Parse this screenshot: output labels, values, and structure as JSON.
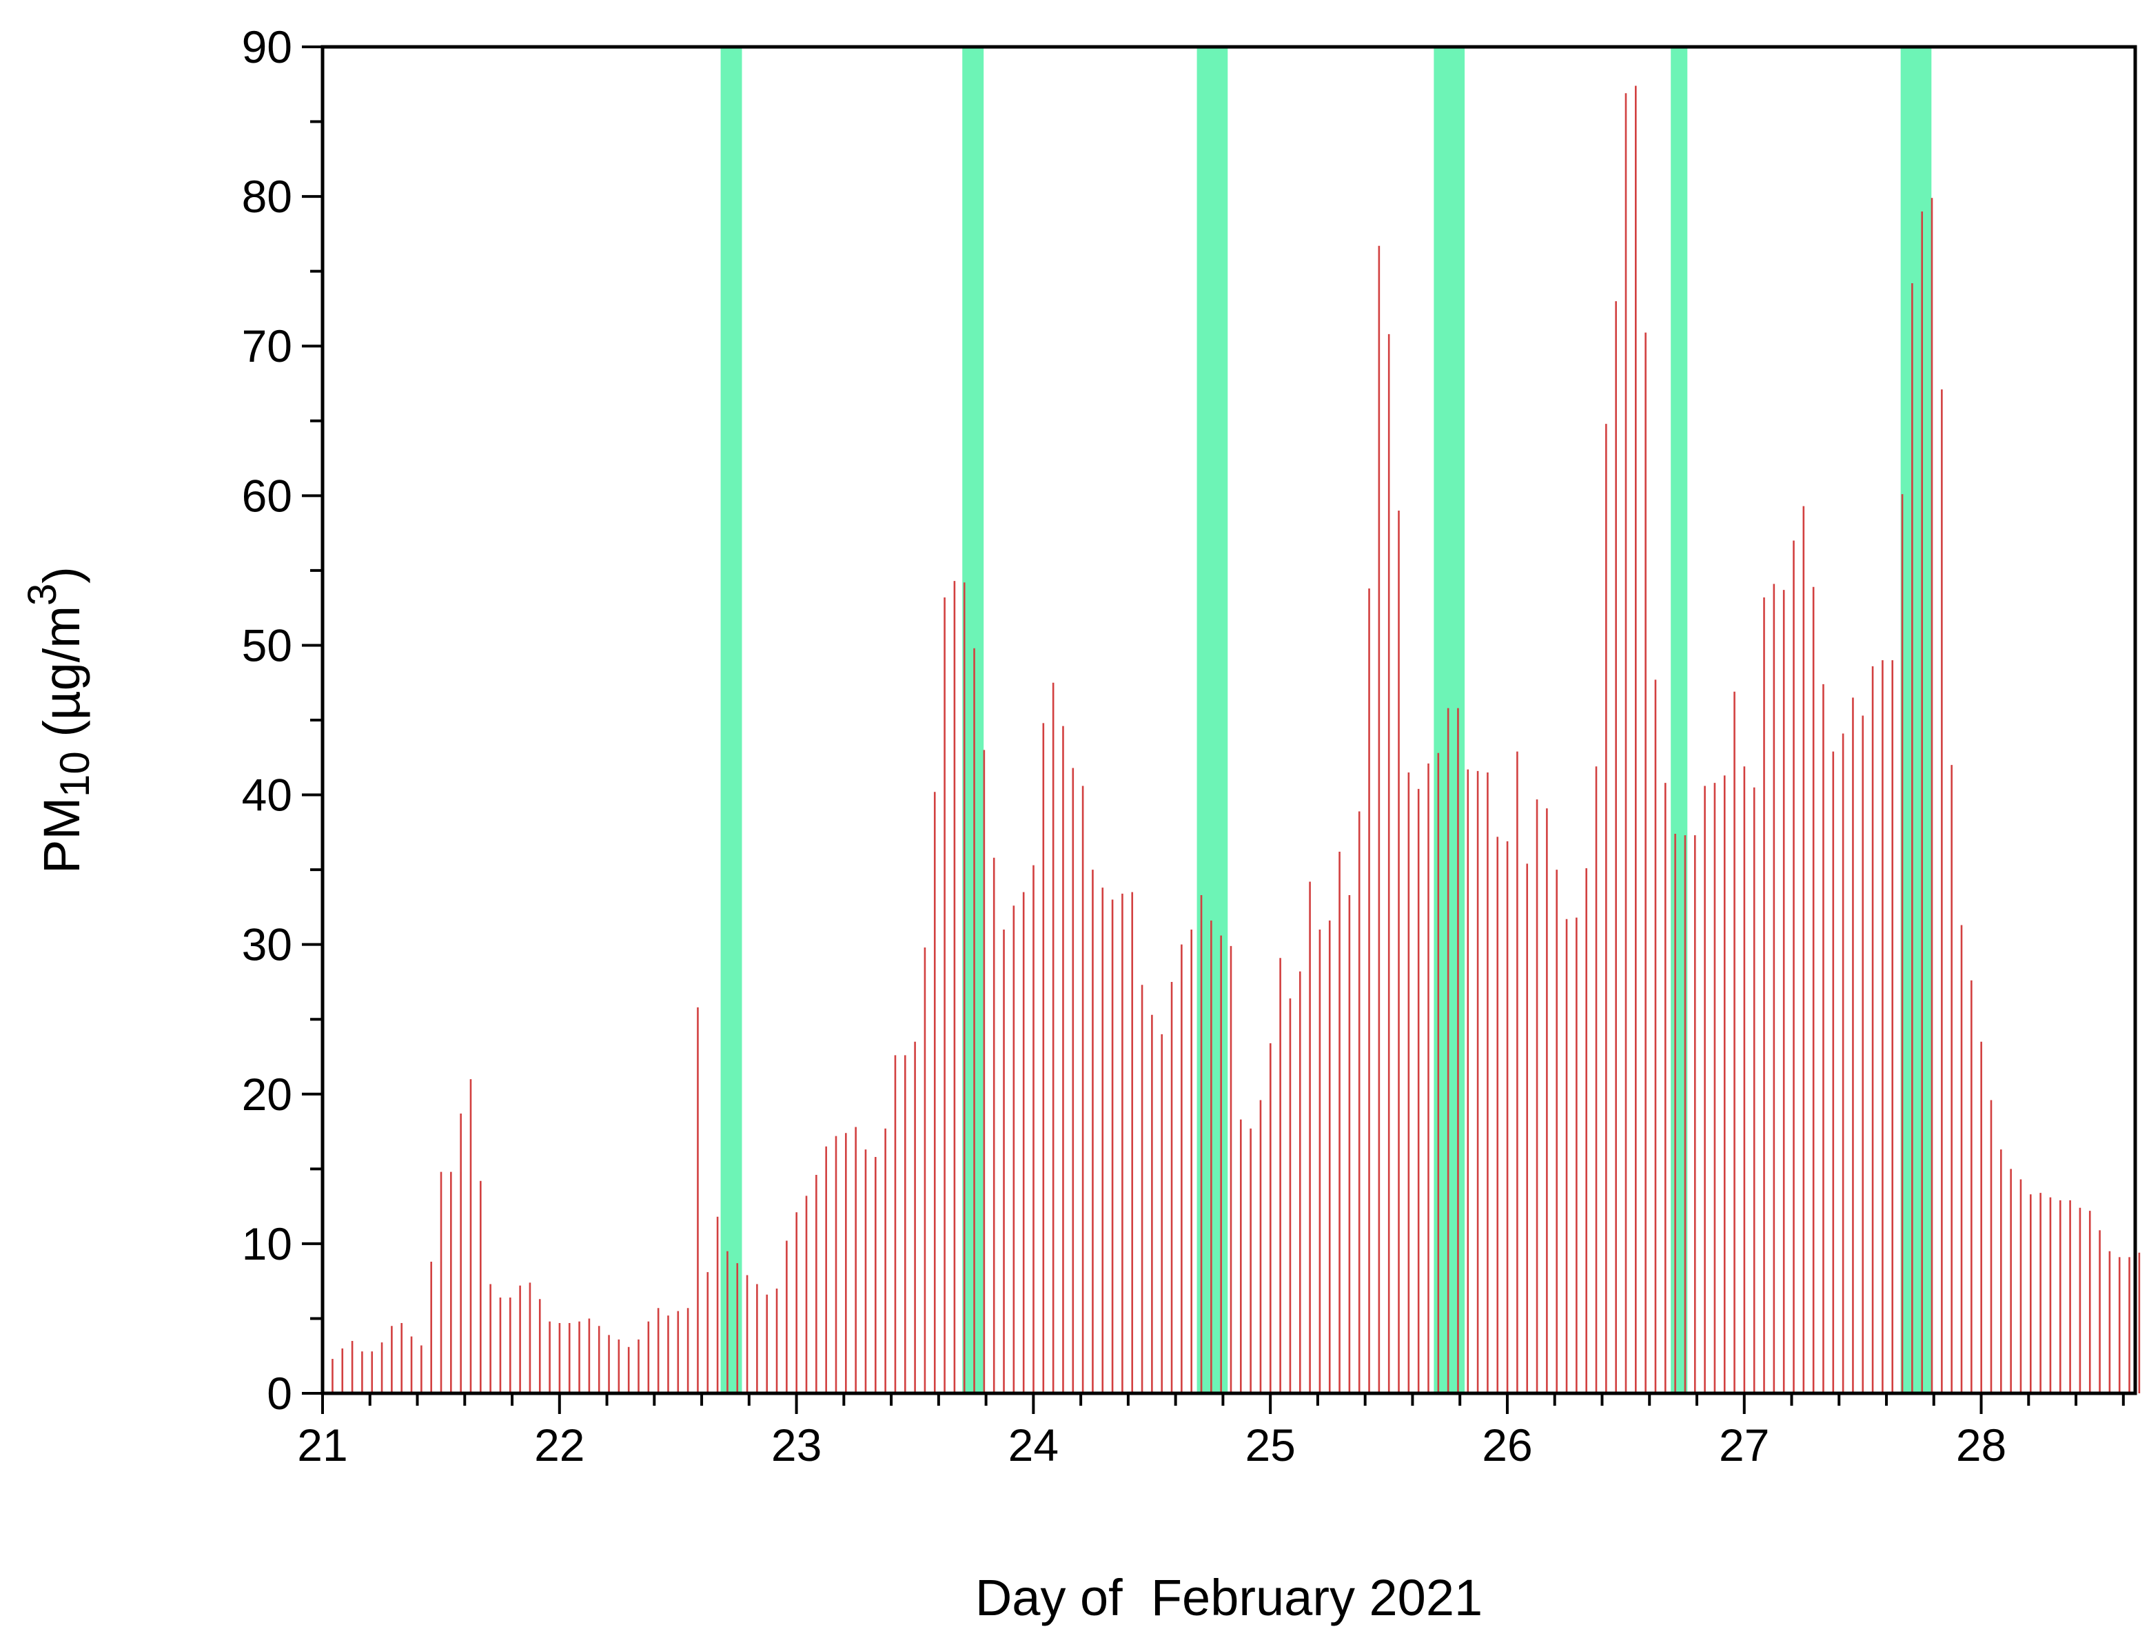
{
  "chart_data": {
    "type": "bar",
    "title": "",
    "xlabel": "Day of  February 2021",
    "ylabel": {
      "prefix": "PM",
      "subscript": "10",
      "unit_open": " (µg/m",
      "superscript": "3",
      "unit_close": ")"
    },
    "xlim": [
      21,
      28.65
    ],
    "ylim": [
      0,
      90
    ],
    "x_ticks": [
      "21",
      "22",
      "23",
      "24",
      "25",
      "26",
      "27",
      "28"
    ],
    "y_ticks": [
      "0",
      "10",
      "20",
      "30",
      "40",
      "50",
      "60",
      "70",
      "80",
      "90"
    ],
    "grid": false,
    "legend": "none",
    "bar_color": "#d24040",
    "band_color": "#4df2a6",
    "x_start": 21.042,
    "x_step": 0.041667,
    "values": [
      2.3,
      3.0,
      3.5,
      2.8,
      2.8,
      3.4,
      4.5,
      4.7,
      3.8,
      3.2,
      8.8,
      14.8,
      14.8,
      18.7,
      21.0,
      14.2,
      7.3,
      6.4,
      6.4,
      7.2,
      7.4,
      6.3,
      4.8,
      4.7,
      4.7,
      4.8,
      5.0,
      4.5,
      3.9,
      3.6,
      3.1,
      3.6,
      4.8,
      5.7,
      5.2,
      5.5,
      5.7,
      25.8,
      8.1,
      11.8,
      9.5,
      8.7,
      7.9,
      7.3,
      6.6,
      7.0,
      10.2,
      12.1,
      13.2,
      14.6,
      16.5,
      17.2,
      17.4,
      17.8,
      16.3,
      15.8,
      17.7,
      22.6,
      22.6,
      23.5,
      29.8,
      40.2,
      53.2,
      54.3,
      54.2,
      49.8,
      43.0,
      35.8,
      31.0,
      32.6,
      33.5,
      35.3,
      44.8,
      47.5,
      44.6,
      41.8,
      40.6,
      35.0,
      33.8,
      33.0,
      33.4,
      33.5,
      27.3,
      25.3,
      24.0,
      27.5,
      30.0,
      31.0,
      33.3,
      31.6,
      30.6,
      29.9,
      18.3,
      17.7,
      19.6,
      23.4,
      29.1,
      26.4,
      28.2,
      34.2,
      31.0,
      31.6,
      36.2,
      33.3,
      38.9,
      53.8,
      76.7,
      70.8,
      59.0,
      41.5,
      40.4,
      42.1,
      42.8,
      45.8,
      45.8,
      41.7,
      41.6,
      41.5,
      37.2,
      36.9,
      42.9,
      35.4,
      39.7,
      39.1,
      35.0,
      31.7,
      31.8,
      35.1,
      41.9,
      64.8,
      73.0,
      86.9,
      87.4,
      70.9,
      47.7,
      40.8,
      37.4,
      37.3,
      37.3,
      40.6,
      40.8,
      41.3,
      46.9,
      41.9,
      40.5,
      53.2,
      54.1,
      53.7,
      57.0,
      59.3,
      53.9,
      47.4,
      42.9,
      44.1,
      46.5,
      45.3,
      48.6,
      49.0,
      49.0,
      60.1,
      74.2,
      79.0,
      79.9,
      67.1,
      42.0,
      31.3,
      27.6,
      23.5,
      19.6,
      16.3,
      15.0,
      14.3,
      13.3,
      13.4,
      13.1,
      12.9,
      12.9,
      12.4,
      12.2,
      10.9,
      9.5,
      9.1,
      9.1,
      9.4
    ],
    "shaded_bands": [
      [
        22.68,
        22.77
      ],
      [
        23.7,
        23.79
      ],
      [
        24.69,
        24.82
      ],
      [
        25.69,
        25.82
      ],
      [
        26.69,
        26.76
      ],
      [
        27.66,
        27.79
      ]
    ]
  }
}
